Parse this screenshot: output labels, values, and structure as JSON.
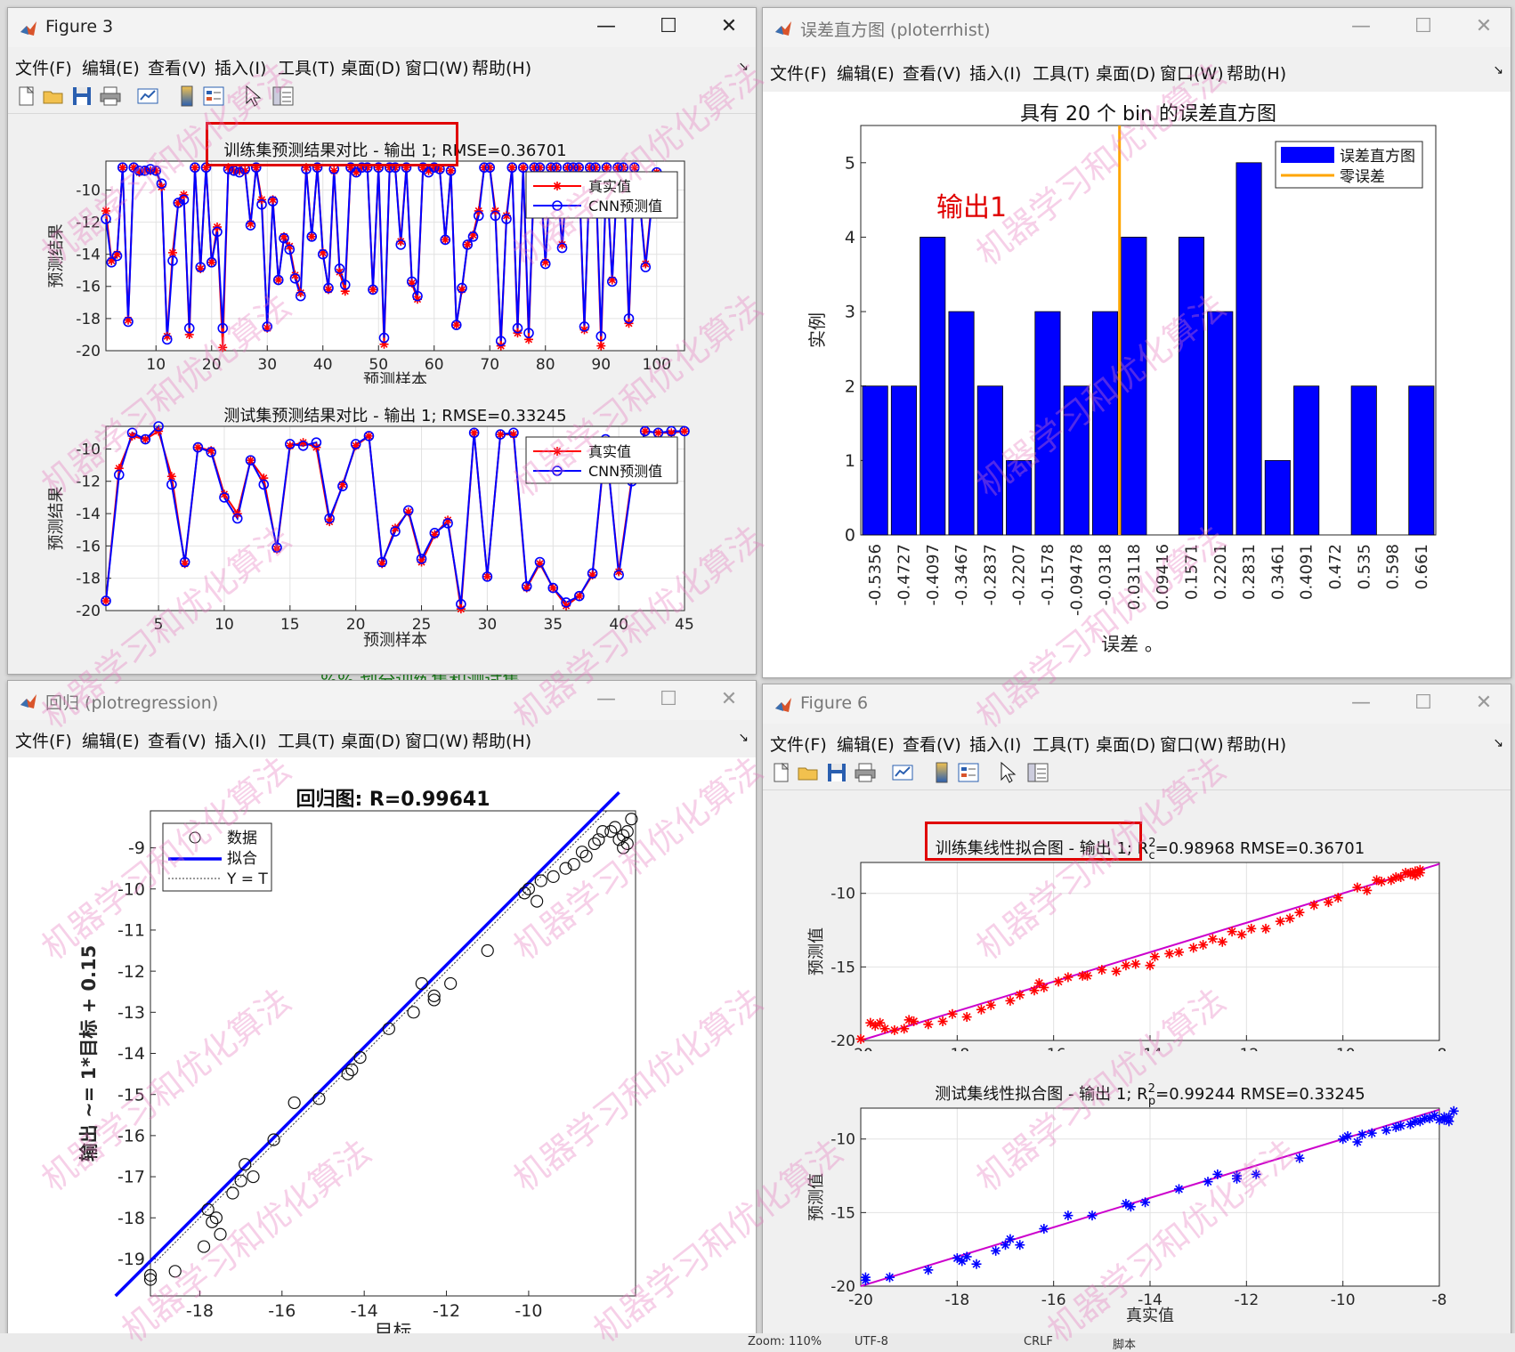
{
  "menu_items": [
    "文件(F)",
    "编辑(E)",
    "查看(V)",
    "插入(I)",
    "工具(T)",
    "桌面(D)",
    "窗口(W)",
    "帮助(H)"
  ],
  "windows": {
    "fig3": {
      "title": "Figure 3"
    },
    "hist": {
      "title": "误差直方图 (ploterrhist)"
    },
    "reg": {
      "title": "回归 (plotregression)"
    },
    "fig6": {
      "title": "Figure 6"
    }
  },
  "window_controls": {
    "minimize": "—",
    "maximize": "☐",
    "close": "✕"
  },
  "status_bar": {
    "zoom": "Zoom: 110%",
    "pos": "UTF-8",
    "crlf": "CRLF",
    "script": "脚本"
  },
  "background_code": "%% 划分训练集和测试集",
  "watermark": "机器学习和优化算法",
  "colors": {
    "real": "#ff0000",
    "pred": "#0000ff",
    "bar": "#0000ff",
    "zero": "#ffa500",
    "fit": "#cc00cc",
    "annot": "#e00000"
  },
  "chart_data": [
    {
      "id": "train_compare",
      "type": "line",
      "title": "训练集预测结果对比 - 输出 1; RMSE=0.36701",
      "xlabel": "预测样本",
      "ylabel": "预测结果",
      "xlim": [
        1,
        105
      ],
      "ylim": [
        -20,
        -8.2
      ],
      "xticks": [
        10,
        20,
        30,
        40,
        50,
        60,
        70,
        80,
        90,
        100
      ],
      "yticks": [
        -20,
        -18,
        -16,
        -14,
        -12,
        -10
      ],
      "legend": {
        "position": "top-right",
        "entries": [
          "真实值",
          "CNN预测值"
        ]
      },
      "series": [
        {
          "name": "真实值",
          "values": [
            -11.3,
            -14.4,
            -14.0,
            -8.6,
            -18.1,
            -8.6,
            -8.9,
            -8.8,
            -8.8,
            -8.8,
            -9.8,
            -19.1,
            -13.9,
            -10.8,
            -10.3,
            -19.0,
            -8.6,
            -14.9,
            -8.6,
            -14.5,
            -12.3,
            -19.8,
            -8.6,
            -8.8,
            -8.8,
            -8.8,
            -12.1,
            -8.6,
            -10.6,
            -18.6,
            -10.6,
            -15.6,
            -12.9,
            -13.5,
            -15.3,
            -16.4,
            -8.6,
            -12.9,
            -8.6,
            -13.9,
            -16.2,
            -8.8,
            -15.1,
            -16.3,
            -8.6,
            -8.9,
            -8.6,
            -8.6,
            -16.2,
            -8.6,
            -19.6,
            -8.6,
            -8.6,
            -13.2,
            -8.6,
            -15.8,
            -16.8,
            -8.6,
            -8.8,
            -8.6,
            -8.7,
            -13.1,
            -8.8,
            -18.4,
            -16.2,
            -13.4,
            -12.8,
            -11.3,
            -8.6,
            -8.6,
            -11.3,
            -19.7,
            -11.6,
            -8.6,
            -18.9,
            -8.6,
            -19.3,
            -8.6,
            -8.6,
            -14.5,
            -8.6,
            -8.6,
            -13.4,
            -8.6,
            -8.6,
            -8.6,
            -18.7,
            -8.6,
            -8.6,
            -19.7,
            -8.6,
            -15.6,
            -8.6,
            -8.6,
            -18.3,
            -8.6,
            -10.8,
            -14.6,
            -11.1,
            -8.9
          ],
          "color": "#ff0000"
        },
        {
          "name": "CNN预测值",
          "values": [
            -11.8,
            -14.5,
            -14.1,
            -8.6,
            -18.2,
            -8.6,
            -8.8,
            -8.8,
            -8.7,
            -8.8,
            -9.6,
            -19.3,
            -14.4,
            -10.8,
            -10.6,
            -18.6,
            -8.6,
            -14.8,
            -8.6,
            -14.5,
            -12.6,
            -18.6,
            -8.7,
            -8.8,
            -8.9,
            -8.7,
            -12.2,
            -8.6,
            -10.9,
            -18.5,
            -10.7,
            -15.6,
            -13.0,
            -13.7,
            -15.5,
            -16.6,
            -8.7,
            -12.9,
            -8.6,
            -14.0,
            -16.1,
            -8.7,
            -14.9,
            -15.9,
            -8.6,
            -8.9,
            -8.6,
            -8.6,
            -16.2,
            -8.6,
            -19.2,
            -8.6,
            -8.6,
            -13.4,
            -8.6,
            -15.7,
            -16.6,
            -8.6,
            -8.9,
            -8.6,
            -8.7,
            -13.1,
            -8.8,
            -18.4,
            -16.1,
            -13.4,
            -12.9,
            -11.6,
            -8.6,
            -8.6,
            -11.6,
            -19.4,
            -11.8,
            -8.6,
            -18.6,
            -8.6,
            -18.9,
            -8.6,
            -8.6,
            -14.6,
            -8.6,
            -8.6,
            -13.6,
            -8.6,
            -8.6,
            -8.6,
            -18.5,
            -8.6,
            -8.6,
            -19.1,
            -8.6,
            -15.7,
            -8.6,
            -8.6,
            -18.0,
            -8.6,
            -10.8,
            -14.8,
            -11.3,
            -8.9
          ],
          "color": "#0000ff"
        }
      ]
    },
    {
      "id": "test_compare",
      "type": "line",
      "title": "测试集预测结果对比 - 输出 1; RMSE=0.33245",
      "xlabel": "预测样本",
      "ylabel": "预测结果",
      "xlim": [
        1,
        45
      ],
      "ylim": [
        -20,
        -8.6
      ],
      "xticks": [
        5,
        10,
        15,
        20,
        25,
        30,
        35,
        40,
        45
      ],
      "yticks": [
        -20,
        -18,
        -16,
        -14,
        -12,
        -10
      ],
      "legend": {
        "position": "top-right",
        "entries": [
          "真实值",
          "CNN预测值"
        ]
      },
      "series": [
        {
          "name": "真实值",
          "values": [
            -19.4,
            -11.2,
            -9.2,
            -9.4,
            -8.9,
            -11.7,
            -17.1,
            -9.9,
            -10.1,
            -12.8,
            -14.0,
            -10.7,
            -11.8,
            -16.2,
            -9.8,
            -9.6,
            -9.9,
            -14.5,
            -12.2,
            -9.8,
            -9.2,
            -17.1,
            -14.9,
            -13.9,
            -17.0,
            -15.3,
            -14.4,
            -19.9,
            -9.0,
            -17.9,
            -9.1,
            -9.1,
            -18.6,
            -17.1,
            -18.6,
            -19.7,
            -19.1,
            -17.8,
            -9.5,
            -17.6,
            -11.8,
            -8.9,
            -9.0,
            -9.0,
            -8.9
          ],
          "color": "#ff0000"
        },
        {
          "name": "CNN预测值",
          "values": [
            -19.4,
            -11.6,
            -9.0,
            -9.4,
            -8.6,
            -12.2,
            -17.0,
            -9.9,
            -10.2,
            -13.0,
            -14.3,
            -10.7,
            -12.2,
            -16.1,
            -9.7,
            -9.8,
            -9.6,
            -14.3,
            -12.3,
            -9.7,
            -9.2,
            -17.0,
            -15.1,
            -13.8,
            -16.8,
            -15.2,
            -14.6,
            -19.6,
            -9.0,
            -17.9,
            -9.1,
            -9.0,
            -18.5,
            -17.0,
            -18.6,
            -19.5,
            -19.1,
            -17.7,
            -9.4,
            -17.8,
            -12.0,
            -8.9,
            -9.0,
            -8.9,
            -8.9
          ],
          "color": "#0000ff"
        }
      ]
    },
    {
      "id": "error_hist",
      "type": "bar",
      "title": "具有 20 个 bin 的误差直方图",
      "xlabel": "误差 。",
      "ylabel": "实例",
      "categories": [
        "-0.5356",
        "-0.4727",
        "-0.4097",
        "-0.3467",
        "-0.2837",
        "-0.2207",
        "-0.1578",
        "-0.09478",
        "-0.0318",
        "0.03118",
        "0.09416",
        "0.1571",
        "0.2201",
        "0.2831",
        "0.3461",
        "0.4091",
        "0.472",
        "0.535",
        "0.598",
        "0.661"
      ],
      "values": [
        2,
        2,
        4,
        3,
        2,
        1,
        3,
        2,
        3,
        4,
        0,
        4,
        3,
        5,
        1,
        2,
        0,
        2,
        0,
        2
      ],
      "ylim": [
        0,
        5.5
      ],
      "yticks": [
        0,
        1,
        2,
        3,
        4,
        5
      ],
      "zero_error_position": 9,
      "legend": {
        "position": "top-right",
        "entries": [
          "误差直方图",
          "零误差"
        ]
      },
      "annotation": "输出1"
    },
    {
      "id": "regression",
      "type": "scatter",
      "title": "回归图: R=0.99641",
      "xlabel": "目标",
      "ylabel": "输出 ~= 1*目标 + 0.15",
      "xlim": [
        -19.2,
        -7.4
      ],
      "ylim": [
        -19.9,
        -8.1
      ],
      "xticks": [
        -18,
        -16,
        -14,
        -12,
        -10
      ],
      "yticks": [
        -19,
        -18,
        -17,
        -16,
        -15,
        -14,
        -13,
        -12,
        -11,
        -10,
        -9
      ],
      "legend": {
        "position": "top-left",
        "entries": [
          "数据",
          "拟合",
          "Y = T"
        ]
      },
      "points": [
        [
          -19.2,
          -19.5
        ],
        [
          -19.2,
          -19.4
        ],
        [
          -18.6,
          -19.3
        ],
        [
          -17.9,
          -18.7
        ],
        [
          -17.8,
          -17.8
        ],
        [
          -17.7,
          -18.1
        ],
        [
          -17.6,
          -18.0
        ],
        [
          -17.5,
          -18.4
        ],
        [
          -17.2,
          -17.4
        ],
        [
          -17.0,
          -17.1
        ],
        [
          -16.9,
          -16.7
        ],
        [
          -16.7,
          -17.0
        ],
        [
          -16.2,
          -16.1
        ],
        [
          -15.7,
          -15.2
        ],
        [
          -15.1,
          -15.1
        ],
        [
          -14.4,
          -14.5
        ],
        [
          -14.3,
          -14.4
        ],
        [
          -14.1,
          -14.1
        ],
        [
          -13.4,
          -13.4
        ],
        [
          -12.8,
          -13.0
        ],
        [
          -12.6,
          -12.3
        ],
        [
          -12.3,
          -12.6
        ],
        [
          -12.3,
          -12.7
        ],
        [
          -11.9,
          -12.3
        ],
        [
          -11.0,
          -11.5
        ],
        [
          -10.1,
          -10.1
        ],
        [
          -10.0,
          -10.0
        ],
        [
          -9.8,
          -10.3
        ],
        [
          -9.7,
          -9.8
        ],
        [
          -9.4,
          -9.7
        ],
        [
          -9.1,
          -9.5
        ],
        [
          -8.9,
          -9.4
        ],
        [
          -8.7,
          -9.1
        ],
        [
          -8.6,
          -9.2
        ],
        [
          -8.4,
          -8.9
        ],
        [
          -8.3,
          -8.8
        ],
        [
          -8.2,
          -8.6
        ],
        [
          -8.0,
          -8.6
        ],
        [
          -7.9,
          -8.5
        ],
        [
          -7.8,
          -8.8
        ],
        [
          -7.7,
          -9.0
        ],
        [
          -7.7,
          -8.7
        ],
        [
          -7.6,
          -8.9
        ],
        [
          -7.6,
          -8.6
        ],
        [
          -7.5,
          -8.3
        ]
      ],
      "fit": {
        "slope": 1,
        "intercept": 0.15
      }
    },
    {
      "id": "train_fit",
      "type": "scatter",
      "title": "训练集线性拟合图 - 输出 1; R",
      "title_sup": "2",
      "title_sub": "c",
      "title_tail": "=0.98968  RMSE=0.36701",
      "xlabel": "真实值",
      "ylabel": "预测值",
      "xlim": [
        -20,
        -8
      ],
      "ylim": [
        -20,
        -7.9
      ],
      "xticks": [
        -20,
        -18,
        -16,
        -14,
        -12,
        -10,
        -8
      ],
      "yticks": [
        -20,
        -15,
        -10
      ],
      "points": [
        [
          -20.0,
          -19.9
        ],
        [
          -19.8,
          -18.8
        ],
        [
          -19.7,
          -19.0
        ],
        [
          -19.6,
          -18.8
        ],
        [
          -19.5,
          -19.2
        ],
        [
          -19.3,
          -19.3
        ],
        [
          -19.1,
          -19.2
        ],
        [
          -19.0,
          -18.6
        ],
        [
          -18.9,
          -18.7
        ],
        [
          -18.6,
          -18.9
        ],
        [
          -18.3,
          -18.7
        ],
        [
          -18.1,
          -18.2
        ],
        [
          -17.8,
          -18.4
        ],
        [
          -17.5,
          -17.9
        ],
        [
          -17.3,
          -17.6
        ],
        [
          -16.9,
          -17.3
        ],
        [
          -16.7,
          -16.9
        ],
        [
          -16.4,
          -16.6
        ],
        [
          -16.3,
          -16.1
        ],
        [
          -16.2,
          -16.4
        ],
        [
          -15.9,
          -16.0
        ],
        [
          -15.7,
          -15.7
        ],
        [
          -15.4,
          -15.6
        ],
        [
          -15.3,
          -15.6
        ],
        [
          -15.0,
          -15.2
        ],
        [
          -14.7,
          -15.3
        ],
        [
          -14.5,
          -14.9
        ],
        [
          -14.3,
          -14.8
        ],
        [
          -14.0,
          -14.9
        ],
        [
          -13.9,
          -14.3
        ],
        [
          -13.6,
          -14.1
        ],
        [
          -13.4,
          -14.0
        ],
        [
          -13.1,
          -13.7
        ],
        [
          -12.9,
          -13.5
        ],
        [
          -12.7,
          -13.1
        ],
        [
          -12.5,
          -13.3
        ],
        [
          -12.3,
          -12.6
        ],
        [
          -12.1,
          -12.8
        ],
        [
          -11.9,
          -12.4
        ],
        [
          -11.6,
          -12.4
        ],
        [
          -11.3,
          -11.9
        ],
        [
          -11.1,
          -11.7
        ],
        [
          -10.9,
          -11.3
        ],
        [
          -10.6,
          -10.8
        ],
        [
          -10.3,
          -10.6
        ],
        [
          -10.1,
          -10.3
        ],
        [
          -9.7,
          -9.6
        ],
        [
          -9.5,
          -9.8
        ],
        [
          -9.3,
          -9.1
        ],
        [
          -9.2,
          -9.2
        ],
        [
          -9.0,
          -9.1
        ],
        [
          -8.9,
          -8.9
        ],
        [
          -8.8,
          -8.9
        ],
        [
          -8.7,
          -8.6
        ],
        [
          -8.6,
          -8.7
        ],
        [
          -8.6,
          -8.6
        ],
        [
          -8.5,
          -8.5
        ],
        [
          -8.5,
          -8.8
        ],
        [
          -8.4,
          -8.6
        ],
        [
          -8.4,
          -8.4
        ]
      ],
      "fit": {
        "slope": 1,
        "intercept": 0
      }
    },
    {
      "id": "test_fit",
      "type": "scatter",
      "title": "测试集线性拟合图 - 输出 1; R",
      "title_sup": "2",
      "title_sub": "p",
      "title_tail": "=0.99244  RMSE=0.33245",
      "xlabel": "真实值",
      "ylabel": "预测值",
      "xlim": [
        -20,
        -8
      ],
      "ylim": [
        -20,
        -7.9
      ],
      "xticks": [
        -20,
        -18,
        -16,
        -14,
        -12,
        -10,
        -8
      ],
      "yticks": [
        -20,
        -15,
        -10
      ],
      "points": [
        [
          -19.9,
          -19.6
        ],
        [
          -19.9,
          -19.4
        ],
        [
          -19.4,
          -19.4
        ],
        [
          -18.6,
          -18.9
        ],
        [
          -18.0,
          -18.1
        ],
        [
          -17.9,
          -18.3
        ],
        [
          -17.8,
          -18.0
        ],
        [
          -17.6,
          -18.5
        ],
        [
          -17.2,
          -17.6
        ],
        [
          -17.0,
          -17.2
        ],
        [
          -16.9,
          -16.8
        ],
        [
          -16.7,
          -17.2
        ],
        [
          -16.2,
          -16.1
        ],
        [
          -15.7,
          -15.2
        ],
        [
          -15.2,
          -15.2
        ],
        [
          -14.5,
          -14.4
        ],
        [
          -14.4,
          -14.6
        ],
        [
          -14.1,
          -14.3
        ],
        [
          -13.4,
          -13.4
        ],
        [
          -12.8,
          -12.9
        ],
        [
          -12.6,
          -12.4
        ],
        [
          -12.2,
          -12.7
        ],
        [
          -12.2,
          -12.5
        ],
        [
          -11.8,
          -12.4
        ],
        [
          -10.9,
          -11.3
        ],
        [
          -10.0,
          -10.0
        ],
        [
          -9.9,
          -9.8
        ],
        [
          -9.7,
          -10.2
        ],
        [
          -9.6,
          -9.7
        ],
        [
          -9.4,
          -9.6
        ],
        [
          -9.1,
          -9.4
        ],
        [
          -8.9,
          -9.2
        ],
        [
          -8.8,
          -9.1
        ],
        [
          -8.6,
          -9.0
        ],
        [
          -8.5,
          -8.8
        ],
        [
          -8.4,
          -8.8
        ],
        [
          -8.3,
          -8.6
        ],
        [
          -8.2,
          -8.6
        ],
        [
          -8.1,
          -8.4
        ],
        [
          -8.0,
          -8.7
        ],
        [
          -7.9,
          -8.7
        ],
        [
          -7.9,
          -8.5
        ],
        [
          -7.8,
          -8.5
        ],
        [
          -7.8,
          -8.8
        ],
        [
          -7.7,
          -8.1
        ]
      ],
      "fit": {
        "slope": 1,
        "intercept": 0
      }
    }
  ]
}
